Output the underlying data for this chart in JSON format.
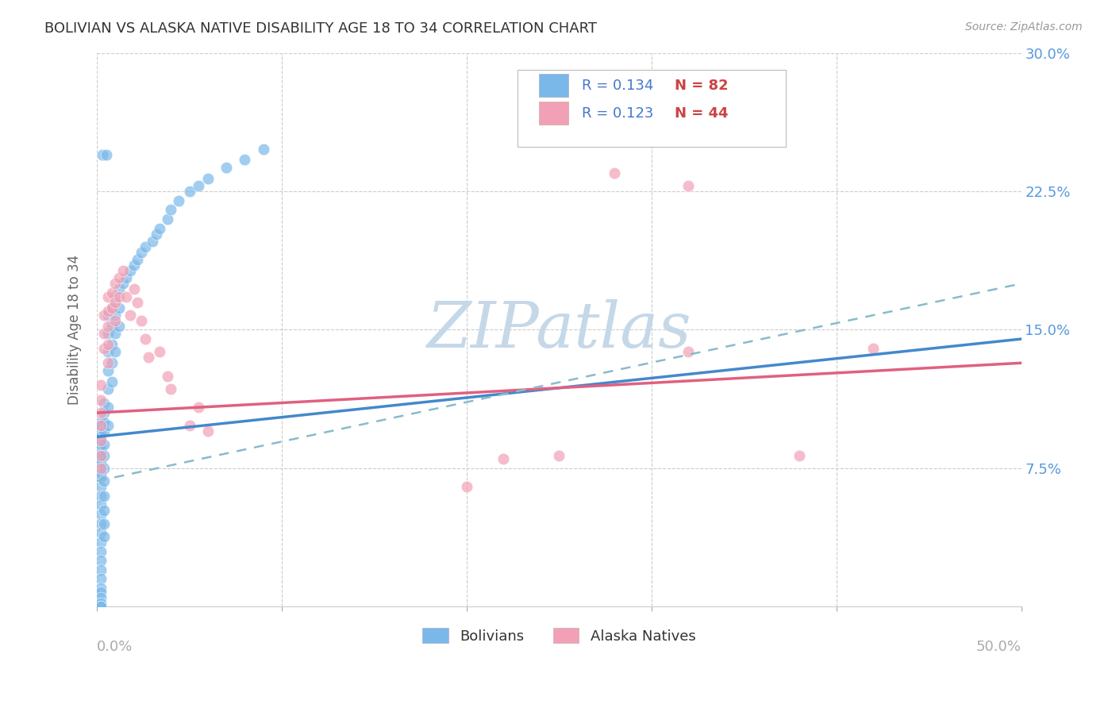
{
  "title": "BOLIVIAN VS ALASKA NATIVE DISABILITY AGE 18 TO 34 CORRELATION CHART",
  "source": "Source: ZipAtlas.com",
  "ylabel_label": "Disability Age 18 to 34",
  "xlim": [
    0.0,
    0.5
  ],
  "ylim": [
    0.0,
    0.3
  ],
  "legend_r1": "R = 0.134",
  "legend_n1": "N = 82",
  "legend_r2": "R = 0.123",
  "legend_n2": "N = 44",
  "color_bolivian": "#7ab8ea",
  "color_alaska": "#f2a0b5",
  "color_trendline_bolivian": "#4488cc",
  "color_trendline_alaska": "#e06080",
  "color_trendline_dashed": "#88bbcc",
  "watermark_color": "#c5d8e8",
  "background_color": "#ffffff",
  "grid_color": "#cccccc",
  "title_color": "#333333",
  "tick_color_right": "#5599dd",
  "tick_color_bottom": "#aaaaaa",
  "legend_text_color": "#4477cc",
  "legend_n_color": "#cc4444",
  "trendline_blue_x0": 0.0,
  "trendline_blue_x1": 0.5,
  "trendline_blue_y0": 0.092,
  "trendline_blue_y1": 0.145,
  "trendline_pink_x0": 0.0,
  "trendline_pink_x1": 0.5,
  "trendline_pink_y0": 0.105,
  "trendline_pink_y1": 0.132,
  "trendline_dash_x0": 0.0,
  "trendline_dash_x1": 0.5,
  "trendline_dash_y0": 0.068,
  "trendline_dash_y1": 0.175,
  "bolivian_x": [
    0.002,
    0.002,
    0.002,
    0.002,
    0.002,
    0.002,
    0.002,
    0.002,
    0.002,
    0.002,
    0.002,
    0.002,
    0.002,
    0.002,
    0.002,
    0.002,
    0.002,
    0.002,
    0.002,
    0.002,
    0.002,
    0.002,
    0.002,
    0.002,
    0.002,
    0.002,
    0.002,
    0.002,
    0.002,
    0.002,
    0.004,
    0.004,
    0.004,
    0.004,
    0.004,
    0.004,
    0.004,
    0.004,
    0.004,
    0.004,
    0.004,
    0.004,
    0.006,
    0.006,
    0.006,
    0.006,
    0.006,
    0.006,
    0.006,
    0.008,
    0.008,
    0.008,
    0.008,
    0.008,
    0.01,
    0.01,
    0.01,
    0.01,
    0.012,
    0.012,
    0.012,
    0.014,
    0.016,
    0.018,
    0.02,
    0.022,
    0.024,
    0.026,
    0.03,
    0.032,
    0.034,
    0.038,
    0.04,
    0.044,
    0.05,
    0.055,
    0.06,
    0.07,
    0.08,
    0.09,
    0.003,
    0.005
  ],
  "bolivian_y": [
    0.1,
    0.095,
    0.09,
    0.085,
    0.08,
    0.075,
    0.07,
    0.065,
    0.06,
    0.055,
    0.05,
    0.045,
    0.04,
    0.035,
    0.03,
    0.025,
    0.02,
    0.015,
    0.01,
    0.008,
    0.005,
    0.002,
    0.0,
    0.0,
    0.098,
    0.092,
    0.088,
    0.082,
    0.078,
    0.072,
    0.11,
    0.105,
    0.1,
    0.095,
    0.088,
    0.082,
    0.075,
    0.068,
    0.06,
    0.052,
    0.045,
    0.038,
    0.158,
    0.148,
    0.138,
    0.128,
    0.118,
    0.108,
    0.098,
    0.162,
    0.152,
    0.142,
    0.132,
    0.122,
    0.168,
    0.158,
    0.148,
    0.138,
    0.172,
    0.162,
    0.152,
    0.175,
    0.178,
    0.182,
    0.185,
    0.188,
    0.192,
    0.195,
    0.198,
    0.202,
    0.205,
    0.21,
    0.215,
    0.22,
    0.225,
    0.228,
    0.232,
    0.238,
    0.242,
    0.248,
    0.245,
    0.245
  ],
  "alaska_x": [
    0.002,
    0.002,
    0.002,
    0.002,
    0.002,
    0.002,
    0.002,
    0.004,
    0.004,
    0.004,
    0.006,
    0.006,
    0.006,
    0.006,
    0.006,
    0.008,
    0.008,
    0.01,
    0.01,
    0.01,
    0.012,
    0.012,
    0.014,
    0.016,
    0.018,
    0.02,
    0.022,
    0.024,
    0.026,
    0.028,
    0.034,
    0.038,
    0.04,
    0.05,
    0.055,
    0.06,
    0.22,
    0.25,
    0.28,
    0.32,
    0.38,
    0.42,
    0.32,
    0.2
  ],
  "alaska_y": [
    0.12,
    0.112,
    0.105,
    0.098,
    0.09,
    0.082,
    0.075,
    0.158,
    0.148,
    0.14,
    0.168,
    0.16,
    0.152,
    0.142,
    0.132,
    0.17,
    0.162,
    0.175,
    0.165,
    0.155,
    0.178,
    0.168,
    0.182,
    0.168,
    0.158,
    0.172,
    0.165,
    0.155,
    0.145,
    0.135,
    0.138,
    0.125,
    0.118,
    0.098,
    0.108,
    0.095,
    0.08,
    0.082,
    0.235,
    0.138,
    0.082,
    0.14,
    0.228,
    0.065
  ]
}
